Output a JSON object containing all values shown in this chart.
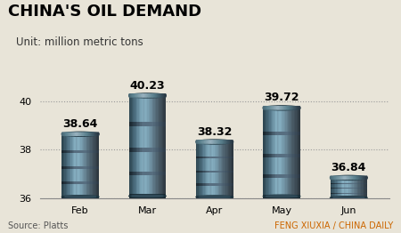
{
  "title": "CHINA'S OIL DEMAND",
  "subtitle": "Unit: million metric tons",
  "categories": [
    "Feb",
    "Mar",
    "Apr",
    "May",
    "Jun"
  ],
  "values": [
    38.64,
    40.23,
    38.32,
    39.72,
    36.84
  ],
  "ylim": [
    36,
    41
  ],
  "yticks": [
    36,
    38,
    40
  ],
  "background_color": "#e8e4d8",
  "grid_color": "#999999",
  "source_text": "Source: Platts",
  "credit_text": "FENG XIUXIA / CHINA DAILY",
  "title_fontsize": 13,
  "subtitle_fontsize": 8.5,
  "tick_fontsize": 8,
  "value_fontsize": 9,
  "credit_color": "#cc6600",
  "source_color": "#555555"
}
